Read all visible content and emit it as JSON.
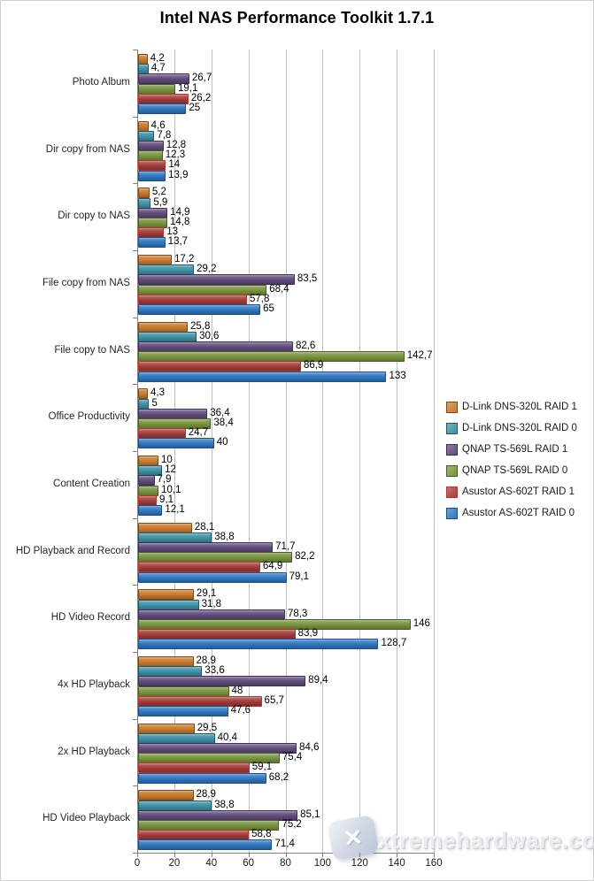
{
  "title": "Intel NAS Performance Toolkit 1.7.1",
  "watermark": {
    "text": "xtremehardware.com",
    "logo": "x-scissors-logo"
  },
  "chart_data": {
    "type": "bar",
    "orientation": "horizontal",
    "title": "Intel NAS Performance Toolkit 1.7.1",
    "xlabel": "",
    "ylabel": "",
    "xlim": [
      0,
      160
    ],
    "x_ticks": [
      0,
      20,
      40,
      60,
      80,
      100,
      120,
      140,
      160
    ],
    "grid": true,
    "legend_position": "right",
    "categories": [
      "Photo Album",
      "Dir copy from NAS",
      "Dir copy to NAS",
      "File copy from NAS",
      "File copy to NAS",
      "Office Productivity",
      "Content Creation",
      "HD Playback and Record",
      "HD Video Record",
      "4x HD Playback",
      "2x HD Playback",
      "HD Video Playback"
    ],
    "series": [
      {
        "name": "D-Link DNS-320L RAID 1",
        "color": "#C9782B",
        "border": "#7F4A12",
        "values": [
          4.2,
          4.6,
          5.2,
          17.2,
          25.8,
          4.3,
          10,
          28.1,
          29.1,
          28.9,
          29.5,
          28.9
        ],
        "labels": [
          "4,2",
          "4,6",
          "5,2",
          "17,2",
          "25,8",
          "4,3",
          "10",
          "28,1",
          "29,1",
          "28,9",
          "29,5",
          "28,9"
        ]
      },
      {
        "name": "D-Link DNS-320L RAID 0",
        "color": "#3B8FA4",
        "border": "#1F5A66",
        "values": [
          4.7,
          7.8,
          5.9,
          29.2,
          30.6,
          5,
          12,
          38.8,
          31.8,
          33.6,
          40.4,
          38.8
        ],
        "labels": [
          "4,7",
          "7,8",
          "5,9",
          "29,2",
          "30,6",
          "5",
          "12",
          "38,8",
          "31,8",
          "33,6",
          "40,4",
          "38,8"
        ]
      },
      {
        "name": "QNAP TS-569L RAID 1",
        "color": "#5F4A7B",
        "border": "#3D2F54",
        "values": [
          26.7,
          12.8,
          14.9,
          83.5,
          82.6,
          36.4,
          7.9,
          71.7,
          78.3,
          89.4,
          84.6,
          85.1
        ],
        "labels": [
          "26,7",
          "12,8",
          "14,9",
          "83,5",
          "82,6",
          "36,4",
          "7,9",
          "71,7",
          "78,3",
          "89,4",
          "84,6",
          "85,1"
        ]
      },
      {
        "name": "QNAP TS-569L RAID 0",
        "color": "#76923C",
        "border": "#4A5E24",
        "values": [
          19.1,
          12.3,
          14.8,
          68.4,
          142.7,
          38.4,
          10.1,
          82.2,
          146,
          48,
          75.4,
          75.2
        ],
        "labels": [
          "19,1",
          "12,3",
          "14,8",
          "68,4",
          "142,7",
          "38,4",
          "10,1",
          "82,2",
          "146",
          "48",
          "75,4",
          "75,2"
        ]
      },
      {
        "name": "Asustor AS-602T RAID 1",
        "color": "#A03A37",
        "border": "#C03028",
        "values": [
          26.2,
          14,
          13,
          57.8,
          86.9,
          24.7,
          9.1,
          64.9,
          83.9,
          65.7,
          59.1,
          58.8
        ],
        "labels": [
          "26,2",
          "14",
          "13",
          "57,8",
          "86,9",
          "24,7",
          "9,1",
          "64,9",
          "83,9",
          "65,7",
          "59,1",
          "58,8"
        ]
      },
      {
        "name": "Asustor AS-602T RAID 0",
        "color": "#2E76C0",
        "border": "#1D4F8C",
        "values": [
          25,
          13.9,
          13.7,
          65,
          133,
          40,
          12.1,
          79.1,
          128.7,
          47.6,
          68.2,
          71.4
        ],
        "labels": [
          "25",
          "13,9",
          "13,7",
          "65",
          "133",
          "40",
          "12,1",
          "79,1",
          "128,7",
          "47,6",
          "68,2",
          "71,4"
        ]
      }
    ]
  }
}
